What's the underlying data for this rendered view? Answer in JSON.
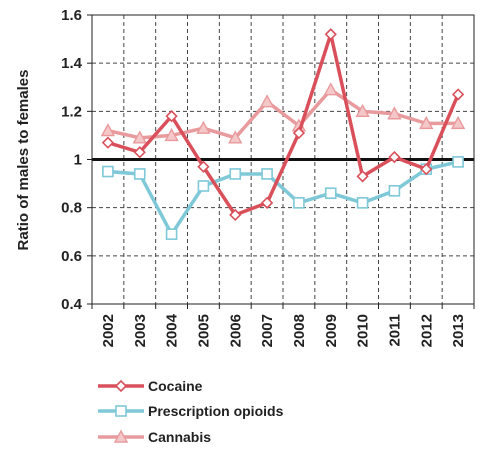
{
  "chart_data": {
    "type": "line",
    "title": "",
    "xlabel": "",
    "ylabel": "Ratio of males to females",
    "x": [
      "2002",
      "2003",
      "2004",
      "2005",
      "2006",
      "2007",
      "2008",
      "2009",
      "2010",
      "2011",
      "2012",
      "2013"
    ],
    "ylim": [
      0.4,
      1.6
    ],
    "yticks": [
      "0.4",
      "0.6",
      "0.8",
      "1",
      "1.2",
      "1.4",
      "1.6"
    ],
    "reference_line": 1,
    "grid": "dashed vertical and horizontal",
    "legend_position": "bottom",
    "series": [
      {
        "name": "Cocaine",
        "marker": "diamond",
        "color": "#d9505b",
        "values": [
          1.07,
          1.03,
          1.18,
          0.97,
          0.77,
          0.82,
          1.11,
          1.52,
          0.93,
          1.01,
          0.96,
          1.27
        ]
      },
      {
        "name": "Prescription opioids",
        "marker": "square",
        "color": "#7ec8d8",
        "values": [
          0.95,
          0.94,
          0.69,
          0.89,
          0.94,
          0.94,
          0.82,
          0.86,
          0.82,
          0.87,
          0.96,
          0.99
        ]
      },
      {
        "name": "Cannabis",
        "marker": "triangle",
        "color": "#e89a9c",
        "values": [
          1.12,
          1.09,
          1.1,
          1.13,
          1.09,
          1.24,
          1.14,
          1.29,
          1.2,
          1.19,
          1.15,
          1.15
        ]
      }
    ]
  }
}
